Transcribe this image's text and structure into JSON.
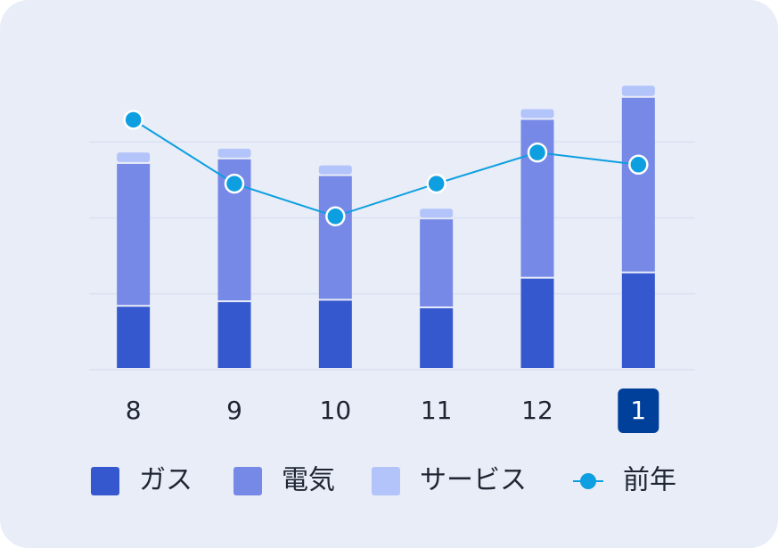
{
  "chart_data": {
    "type": "stacked-bar-line",
    "categories": [
      "8",
      "9",
      "10",
      "11",
      "12",
      "1"
    ],
    "series": [
      {
        "name": "ガス",
        "color": "#3558cf",
        "values": [
          83,
          89,
          91,
          81,
          120,
          127
        ]
      },
      {
        "name": "電気",
        "color": "#7789e6",
        "values": [
          188,
          188,
          164,
          117,
          209,
          231
        ]
      },
      {
        "name": "サービス",
        "color": "#b3c4fb",
        "values": [
          15,
          14,
          14,
          14,
          14,
          16
        ]
      },
      {
        "name": "前年",
        "color": "#0d9fe0",
        "type": "line",
        "values": [
          329,
          245,
          202,
          245,
          286,
          270
        ]
      }
    ],
    "ylim": [
      0,
      380
    ],
    "yticks": [
      0,
      100,
      200,
      300
    ],
    "grid": true
  }
}
